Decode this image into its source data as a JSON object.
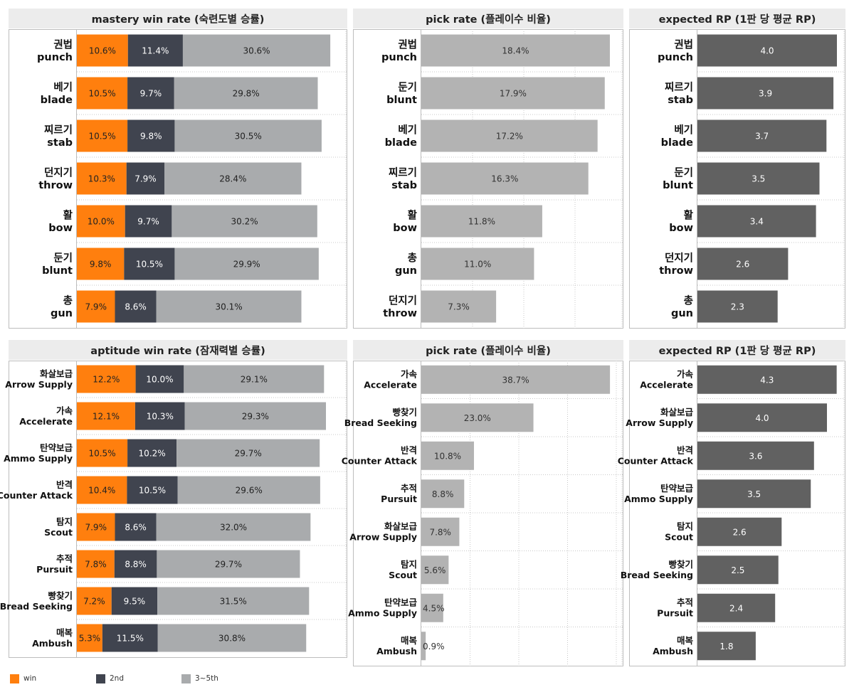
{
  "colors": {
    "win": "#ff7f0e",
    "second": "#40444f",
    "rest": "#a9abad",
    "pick": "#b3b3b3",
    "rp": "#616161",
    "title_bg": "#ececec",
    "grid": "#c8c8c8"
  },
  "legend": {
    "win": "win",
    "second": "2nd",
    "rest": "3~5th"
  },
  "chart_data": [
    {
      "id": "mastery-win",
      "type": "bar",
      "stacked": true,
      "orientation": "horizontal",
      "title": "mastery win rate (숙련도별 승률)",
      "categories": [
        {
          "ko": "권법",
          "en": "punch"
        },
        {
          "ko": "베기",
          "en": "blade"
        },
        {
          "ko": "찌르기",
          "en": "stab"
        },
        {
          "ko": "던지기",
          "en": "throw"
        },
        {
          "ko": "활",
          "en": "bow"
        },
        {
          "ko": "둔기",
          "en": "blunt"
        },
        {
          "ko": "총",
          "en": "gun"
        }
      ],
      "series": [
        {
          "name": "win",
          "values": [
            10.6,
            10.5,
            10.5,
            10.3,
            10.0,
            9.8,
            7.9
          ],
          "labels": [
            "10.6%",
            "10.5%",
            "10.5%",
            "10.3%",
            "10.0%",
            "9.8%",
            "7.9%"
          ]
        },
        {
          "name": "2nd",
          "values": [
            11.4,
            9.7,
            9.8,
            7.9,
            9.7,
            10.5,
            8.6
          ],
          "labels": [
            "11.4%",
            "9.7%",
            "9.8%",
            "7.9%",
            "9.7%",
            "10.5%",
            "8.6%"
          ]
        },
        {
          "name": "3~5th",
          "values": [
            30.6,
            29.8,
            30.5,
            28.4,
            30.2,
            29.9,
            30.1
          ],
          "labels": [
            "30.6%",
            "29.8%",
            "30.5%",
            "28.4%",
            "30.2%",
            "29.9%",
            "30.1%"
          ]
        }
      ],
      "xlim": [
        0,
        55
      ]
    },
    {
      "id": "mastery-pick",
      "type": "bar",
      "orientation": "horizontal",
      "title": "pick rate (플레이수 비율)",
      "categories": [
        {
          "ko": "권법",
          "en": "punch"
        },
        {
          "ko": "둔기",
          "en": "blunt"
        },
        {
          "ko": "베기",
          "en": "blade"
        },
        {
          "ko": "찌르기",
          "en": "stab"
        },
        {
          "ko": "활",
          "en": "bow"
        },
        {
          "ko": "총",
          "en": "gun"
        },
        {
          "ko": "던지기",
          "en": "throw"
        }
      ],
      "values": [
        18.4,
        17.9,
        17.2,
        16.3,
        11.8,
        11.0,
        7.3
      ],
      "labels": [
        "18.4%",
        "17.9%",
        "17.2%",
        "16.3%",
        "11.8%",
        "11.0%",
        "7.3%"
      ],
      "xlim": [
        0,
        20
      ]
    },
    {
      "id": "mastery-rp",
      "type": "bar",
      "orientation": "horizontal",
      "title": "expected RP (1판 당 평균 RP)",
      "categories": [
        {
          "ko": "권법",
          "en": "punch"
        },
        {
          "ko": "찌르기",
          "en": "stab"
        },
        {
          "ko": "베기",
          "en": "blade"
        },
        {
          "ko": "둔기",
          "en": "blunt"
        },
        {
          "ko": "활",
          "en": "bow"
        },
        {
          "ko": "던지기",
          "en": "throw"
        },
        {
          "ko": "총",
          "en": "gun"
        }
      ],
      "values": [
        4.0,
        3.9,
        3.7,
        3.5,
        3.4,
        2.6,
        2.3
      ],
      "labels": [
        "4.0",
        "3.9",
        "3.7",
        "3.5",
        "3.4",
        "2.6",
        "2.3"
      ],
      "xlim": [
        0,
        4.2
      ]
    },
    {
      "id": "aptitude-win",
      "type": "bar",
      "stacked": true,
      "orientation": "horizontal",
      "title": "aptitude win rate (잠재력별 승률)",
      "categories": [
        {
          "ko": "화살보급",
          "en": "Arrow Supply"
        },
        {
          "ko": "가속",
          "en": "Accelerate"
        },
        {
          "ko": "탄약보급",
          "en": "Ammo Supply"
        },
        {
          "ko": "반격",
          "en": "Counter Attack"
        },
        {
          "ko": "탐지",
          "en": "Scout"
        },
        {
          "ko": "추적",
          "en": "Pursuit"
        },
        {
          "ko": "빵찾기",
          "en": "Bread Seeking"
        },
        {
          "ko": "매복",
          "en": "Ambush"
        }
      ],
      "series": [
        {
          "name": "win",
          "values": [
            12.2,
            12.1,
            10.5,
            10.4,
            7.9,
            7.8,
            7.2,
            5.3
          ],
          "labels": [
            "12.2%",
            "12.1%",
            "10.5%",
            "10.4%",
            "7.9%",
            "7.8%",
            "7.2%",
            "5.3%"
          ]
        },
        {
          "name": "2nd",
          "values": [
            10.0,
            10.3,
            10.2,
            10.5,
            8.6,
            8.8,
            9.5,
            11.5
          ],
          "labels": [
            "10.0%",
            "10.3%",
            "10.2%",
            "10.5%",
            "8.6%",
            "8.8%",
            "9.5%",
            "11.5%"
          ]
        },
        {
          "name": "3~5th",
          "values": [
            29.1,
            29.3,
            29.7,
            29.6,
            32.0,
            29.7,
            31.5,
            30.8
          ],
          "labels": [
            "29.1%",
            "29.3%",
            "29.7%",
            "29.6%",
            "32.0%",
            "29.7%",
            "31.5%",
            "30.8%"
          ]
        }
      ],
      "xlim": [
        0,
        55
      ]
    },
    {
      "id": "aptitude-pick",
      "type": "bar",
      "orientation": "horizontal",
      "title": "pick rate (플레이수 비율)",
      "categories": [
        {
          "ko": "가속",
          "en": "Accelerate"
        },
        {
          "ko": "빵찾기",
          "en": "Bread Seeking"
        },
        {
          "ko": "반격",
          "en": "Counter Attack"
        },
        {
          "ko": "추적",
          "en": "Pursuit"
        },
        {
          "ko": "화살보급",
          "en": "Arrow Supply"
        },
        {
          "ko": "탐지",
          "en": "Scout"
        },
        {
          "ko": "탄약보급",
          "en": "Ammo Supply"
        },
        {
          "ko": "매복",
          "en": "Ambush"
        }
      ],
      "values": [
        38.7,
        23.0,
        10.8,
        8.8,
        7.8,
        5.6,
        4.5,
        0.9
      ],
      "labels": [
        "38.7%",
        "23.0%",
        "10.8%",
        "8.8%",
        "7.8%",
        "5.6%",
        "4.5%",
        "0.9%"
      ],
      "xlim": [
        0,
        40
      ]
    },
    {
      "id": "aptitude-rp",
      "type": "bar",
      "orientation": "horizontal",
      "title": "expected RP (1판 당 평균 RP)",
      "categories": [
        {
          "ko": "가속",
          "en": "Accelerate"
        },
        {
          "ko": "화살보급",
          "en": "Arrow Supply"
        },
        {
          "ko": "반격",
          "en": "Counter Attack"
        },
        {
          "ko": "탄약보급",
          "en": "Ammo Supply"
        },
        {
          "ko": "탐지",
          "en": "Scout"
        },
        {
          "ko": "빵찾기",
          "en": "Bread Seeking"
        },
        {
          "ko": "추적",
          "en": "Pursuit"
        },
        {
          "ko": "매복",
          "en": "Ambush"
        }
      ],
      "values": [
        4.3,
        4.0,
        3.6,
        3.5,
        2.6,
        2.5,
        2.4,
        1.8
      ],
      "labels": [
        "4.3",
        "4.0",
        "3.6",
        "3.5",
        "2.6",
        "2.5",
        "2.4",
        "1.8"
      ],
      "xlim": [
        0,
        4.5
      ]
    }
  ]
}
